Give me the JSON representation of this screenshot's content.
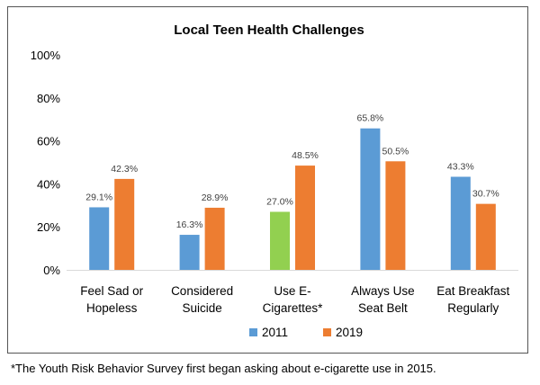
{
  "chart_data": {
    "type": "bar",
    "title": "Local Teen Health Challenges",
    "categories": [
      [
        "Feel Sad or",
        "Hopeless"
      ],
      [
        "Considered",
        "Suicide"
      ],
      [
        "Use E-",
        "Cigarettes*"
      ],
      [
        "Always Use",
        "Seat Belt"
      ],
      [
        "Eat Breakfast",
        "Regularly"
      ]
    ],
    "series": [
      {
        "name": "2011",
        "color": "#5B9BD5",
        "values": [
          29.1,
          16.3,
          27.0,
          65.8,
          43.3
        ],
        "labels": [
          "29.1%",
          "16.3%",
          "27.0%",
          "65.8%",
          "43.3%"
        ],
        "point_colors": [
          null,
          null,
          "#92D050",
          null,
          null
        ]
      },
      {
        "name": "2019",
        "color": "#ED7D31",
        "values": [
          42.3,
          28.9,
          48.5,
          50.5,
          30.7
        ],
        "labels": [
          "42.3%",
          "28.9%",
          "48.5%",
          "50.5%",
          "30.7%"
        ]
      }
    ],
    "ylim": [
      0,
      100
    ],
    "yticks": [
      "0%",
      "20%",
      "40%",
      "60%",
      "80%",
      "100%"
    ],
    "grid": false,
    "legend_position": "bottom"
  },
  "footnote": "*The Youth Risk Behavior Survey first began asking about e-cigarette use in 2015."
}
